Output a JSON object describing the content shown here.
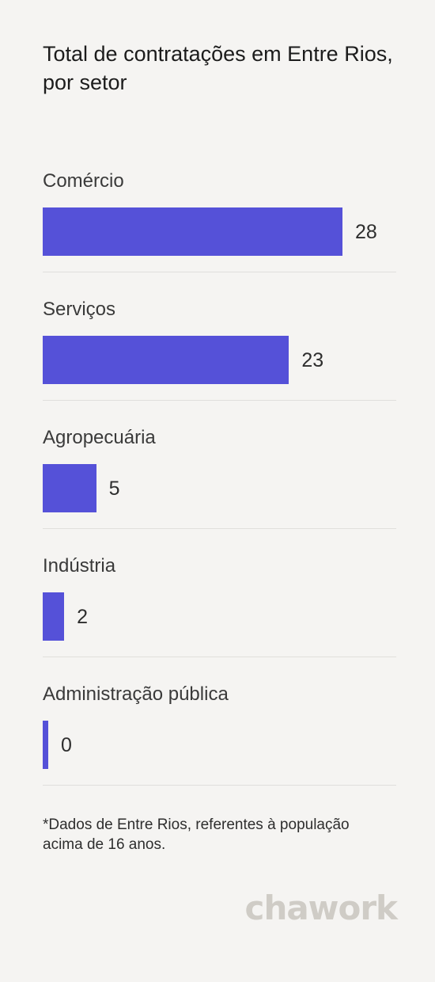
{
  "title": "Total de contratações em Entre Rios, por setor",
  "chart_data": {
    "type": "bar",
    "orientation": "horizontal",
    "title": "Total de contratações em Entre Rios, por setor",
    "categories": [
      "Comércio",
      "Serviços",
      "Agropecuária",
      "Indústria",
      "Administração pública"
    ],
    "values": [
      28,
      23,
      5,
      2,
      0
    ],
    "value_labels": [
      "28",
      "23",
      "5",
      "2",
      "0"
    ],
    "xlabel": "",
    "ylabel": "",
    "xlim": [
      0,
      28
    ],
    "grid": false,
    "legend": "none",
    "bar_color": "#5551d8"
  },
  "footnote": "*Dados de Entre Rios, referentes à população acima de 16 anos.",
  "logo": "chawork",
  "colors": {
    "background": "#f5f4f2",
    "bar": "#5551d8",
    "divider": "#e0dfdc",
    "logo": "#cfccc6"
  }
}
